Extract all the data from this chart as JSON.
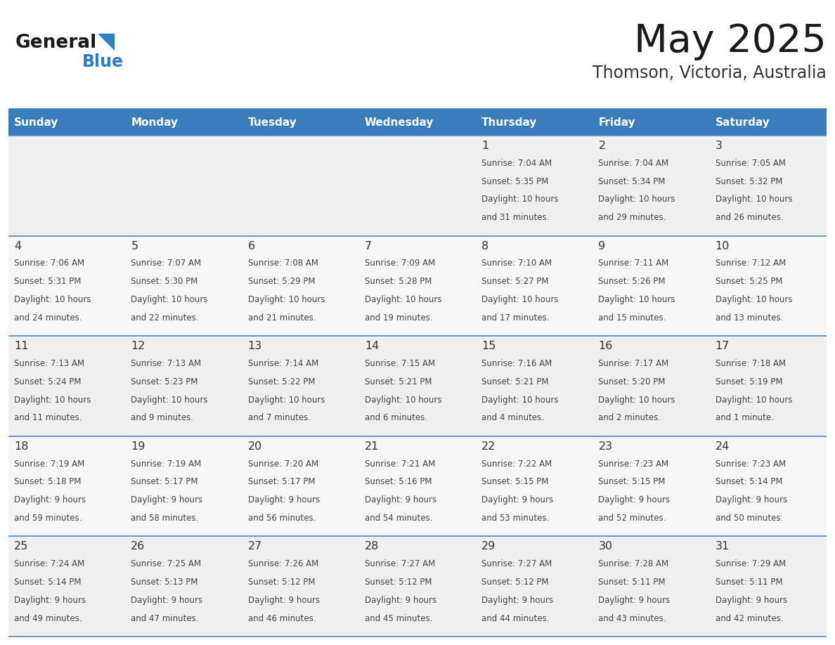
{
  "title": "May 2025",
  "subtitle": "Thomson, Victoria, Australia",
  "header_bg_color": "#3A7DBB",
  "header_text_color": "#FFFFFF",
  "day_names": [
    "Sunday",
    "Monday",
    "Tuesday",
    "Wednesday",
    "Thursday",
    "Friday",
    "Saturday"
  ],
  "cell_bg_row0": "#EFEFEF",
  "cell_bg_row1": "#F5F5F5",
  "cell_bg_row2": "#EFEFEF",
  "cell_bg_row3": "#F5F5F5",
  "cell_bg_row4": "#EFEFEF",
  "title_color": "#1a1a1a",
  "subtitle_color": "#333333",
  "day_num_color": "#333333",
  "cell_text_color": "#444444",
  "grid_line_color": "#4A86C8",
  "logo_general_color": "#1a1a1a",
  "logo_blue_color": "#2E7EC1",
  "days_data": [
    {
      "day": 1,
      "col": 4,
      "row": 0,
      "sunrise": "7:04 AM",
      "sunset": "5:35 PM",
      "daylight": "10 hours and 31 minutes."
    },
    {
      "day": 2,
      "col": 5,
      "row": 0,
      "sunrise": "7:04 AM",
      "sunset": "5:34 PM",
      "daylight": "10 hours and 29 minutes."
    },
    {
      "day": 3,
      "col": 6,
      "row": 0,
      "sunrise": "7:05 AM",
      "sunset": "5:32 PM",
      "daylight": "10 hours and 26 minutes."
    },
    {
      "day": 4,
      "col": 0,
      "row": 1,
      "sunrise": "7:06 AM",
      "sunset": "5:31 PM",
      "daylight": "10 hours and 24 minutes."
    },
    {
      "day": 5,
      "col": 1,
      "row": 1,
      "sunrise": "7:07 AM",
      "sunset": "5:30 PM",
      "daylight": "10 hours and 22 minutes."
    },
    {
      "day": 6,
      "col": 2,
      "row": 1,
      "sunrise": "7:08 AM",
      "sunset": "5:29 PM",
      "daylight": "10 hours and 21 minutes."
    },
    {
      "day": 7,
      "col": 3,
      "row": 1,
      "sunrise": "7:09 AM",
      "sunset": "5:28 PM",
      "daylight": "10 hours and 19 minutes."
    },
    {
      "day": 8,
      "col": 4,
      "row": 1,
      "sunrise": "7:10 AM",
      "sunset": "5:27 PM",
      "daylight": "10 hours and 17 minutes."
    },
    {
      "day": 9,
      "col": 5,
      "row": 1,
      "sunrise": "7:11 AM",
      "sunset": "5:26 PM",
      "daylight": "10 hours and 15 minutes."
    },
    {
      "day": 10,
      "col": 6,
      "row": 1,
      "sunrise": "7:12 AM",
      "sunset": "5:25 PM",
      "daylight": "10 hours and 13 minutes."
    },
    {
      "day": 11,
      "col": 0,
      "row": 2,
      "sunrise": "7:13 AM",
      "sunset": "5:24 PM",
      "daylight": "10 hours and 11 minutes."
    },
    {
      "day": 12,
      "col": 1,
      "row": 2,
      "sunrise": "7:13 AM",
      "sunset": "5:23 PM",
      "daylight": "10 hours and 9 minutes."
    },
    {
      "day": 13,
      "col": 2,
      "row": 2,
      "sunrise": "7:14 AM",
      "sunset": "5:22 PM",
      "daylight": "10 hours and 7 minutes."
    },
    {
      "day": 14,
      "col": 3,
      "row": 2,
      "sunrise": "7:15 AM",
      "sunset": "5:21 PM",
      "daylight": "10 hours and 6 minutes."
    },
    {
      "day": 15,
      "col": 4,
      "row": 2,
      "sunrise": "7:16 AM",
      "sunset": "5:21 PM",
      "daylight": "10 hours and 4 minutes."
    },
    {
      "day": 16,
      "col": 5,
      "row": 2,
      "sunrise": "7:17 AM",
      "sunset": "5:20 PM",
      "daylight": "10 hours and 2 minutes."
    },
    {
      "day": 17,
      "col": 6,
      "row": 2,
      "sunrise": "7:18 AM",
      "sunset": "5:19 PM",
      "daylight": "10 hours and 1 minute."
    },
    {
      "day": 18,
      "col": 0,
      "row": 3,
      "sunrise": "7:19 AM",
      "sunset": "5:18 PM",
      "daylight": "9 hours and 59 minutes."
    },
    {
      "day": 19,
      "col": 1,
      "row": 3,
      "sunrise": "7:19 AM",
      "sunset": "5:17 PM",
      "daylight": "9 hours and 58 minutes."
    },
    {
      "day": 20,
      "col": 2,
      "row": 3,
      "sunrise": "7:20 AM",
      "sunset": "5:17 PM",
      "daylight": "9 hours and 56 minutes."
    },
    {
      "day": 21,
      "col": 3,
      "row": 3,
      "sunrise": "7:21 AM",
      "sunset": "5:16 PM",
      "daylight": "9 hours and 54 minutes."
    },
    {
      "day": 22,
      "col": 4,
      "row": 3,
      "sunrise": "7:22 AM",
      "sunset": "5:15 PM",
      "daylight": "9 hours and 53 minutes."
    },
    {
      "day": 23,
      "col": 5,
      "row": 3,
      "sunrise": "7:23 AM",
      "sunset": "5:15 PM",
      "daylight": "9 hours and 52 minutes."
    },
    {
      "day": 24,
      "col": 6,
      "row": 3,
      "sunrise": "7:23 AM",
      "sunset": "5:14 PM",
      "daylight": "9 hours and 50 minutes."
    },
    {
      "day": 25,
      "col": 0,
      "row": 4,
      "sunrise": "7:24 AM",
      "sunset": "5:14 PM",
      "daylight": "9 hours and 49 minutes."
    },
    {
      "day": 26,
      "col": 1,
      "row": 4,
      "sunrise": "7:25 AM",
      "sunset": "5:13 PM",
      "daylight": "9 hours and 47 minutes."
    },
    {
      "day": 27,
      "col": 2,
      "row": 4,
      "sunrise": "7:26 AM",
      "sunset": "5:12 PM",
      "daylight": "9 hours and 46 minutes."
    },
    {
      "day": 28,
      "col": 3,
      "row": 4,
      "sunrise": "7:27 AM",
      "sunset": "5:12 PM",
      "daylight": "9 hours and 45 minutes."
    },
    {
      "day": 29,
      "col": 4,
      "row": 4,
      "sunrise": "7:27 AM",
      "sunset": "5:12 PM",
      "daylight": "9 hours and 44 minutes."
    },
    {
      "day": 30,
      "col": 5,
      "row": 4,
      "sunrise": "7:28 AM",
      "sunset": "5:11 PM",
      "daylight": "9 hours and 43 minutes."
    },
    {
      "day": 31,
      "col": 6,
      "row": 4,
      "sunrise": "7:29 AM",
      "sunset": "5:11 PM",
      "daylight": "9 hours and 42 minutes."
    }
  ]
}
